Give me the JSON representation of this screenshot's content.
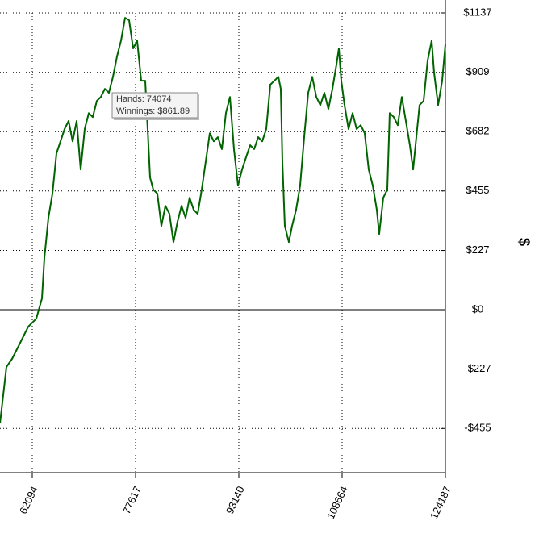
{
  "chart_data": {
    "type": "line",
    "y_axis_label": "$",
    "tooltip": {
      "hands": "Hands: 74074",
      "winnings": "Winnings: $861.89"
    },
    "xlim": [
      57243,
      124187
    ],
    "xticks": [
      62094,
      77617,
      93140,
      108664,
      124187
    ],
    "ylim": [
      -624,
      1137
    ],
    "yticks": [
      {
        "value": -455,
        "label": "-$455"
      },
      {
        "value": -227,
        "label": "-$227"
      },
      {
        "value": 0,
        "label": "$0"
      },
      {
        "value": 227,
        "label": "$227"
      },
      {
        "value": 455,
        "label": "$455"
      },
      {
        "value": 682,
        "label": "$682"
      },
      {
        "value": 909,
        "label": "$909"
      },
      {
        "value": 1137,
        "label": "$1137"
      }
    ],
    "grid": true,
    "series": [
      {
        "color": "#006400",
        "x": [
          57243,
          58213,
          59062,
          60275,
          61487,
          62700,
          63549,
          63913,
          64519,
          65126,
          65732,
          66338,
          66945,
          67551,
          68157,
          68764,
          69370,
          69976,
          70583,
          71189,
          71795,
          72402,
          73008,
          73614,
          74221,
          74827,
          75434,
          76040,
          76646,
          77253,
          77859,
          78465,
          79072,
          79435,
          79799,
          80284,
          80891,
          81497,
          82103,
          82710,
          83316,
          83922,
          84529,
          85135,
          85741,
          86348,
          86954,
          87561,
          88167,
          88773,
          89380,
          89986,
          90592,
          91199,
          91805,
          92411,
          93018,
          93624,
          94230,
          94837,
          95443,
          96049,
          96656,
          97262,
          97868,
          98475,
          99081,
          99445,
          99688,
          100051,
          100658,
          101143,
          101749,
          102355,
          102962,
          103568,
          104174,
          104781,
          105387,
          105994,
          106600,
          107206,
          107813,
          108176,
          108540,
          109025,
          109632,
          110238,
          110844,
          111451,
          112057,
          112663,
          113270,
          113876,
          114240,
          114846,
          115453,
          115816,
          116423,
          117029,
          117635,
          118242,
          118848,
          119333,
          119940,
          120303,
          120910,
          121516,
          122122,
          122486,
          123093,
          123699,
          124187
        ],
        "values": [
          -435,
          -219,
          -188,
          -127,
          -65,
          -34,
          43,
          198,
          352,
          445,
          599,
          645,
          692,
          723,
          645,
          723,
          537,
          692,
          753,
          738,
          800,
          815,
          846,
          831,
          892,
          970,
          1031,
          1118,
          1109,
          1001,
          1031,
          877,
          877,
          692,
          506,
          460,
          445,
          321,
          398,
          367,
          259,
          337,
          398,
          352,
          429,
          383,
          367,
          460,
          568,
          676,
          645,
          661,
          615,
          753,
          815,
          615,
          476,
          537,
          584,
          630,
          615,
          661,
          645,
          692,
          862,
          877,
          892,
          846,
          568,
          321,
          259,
          321,
          383,
          476,
          661,
          831,
          892,
          815,
          784,
          831,
          769,
          846,
          939,
          1001,
          877,
          784,
          692,
          753,
          692,
          707,
          676,
          537,
          476,
          383,
          290,
          429,
          460,
          753,
          738,
          707,
          815,
          723,
          630,
          537,
          692,
          784,
          800,
          954,
          1031,
          908,
          784,
          877,
          1016
        ]
      }
    ]
  }
}
